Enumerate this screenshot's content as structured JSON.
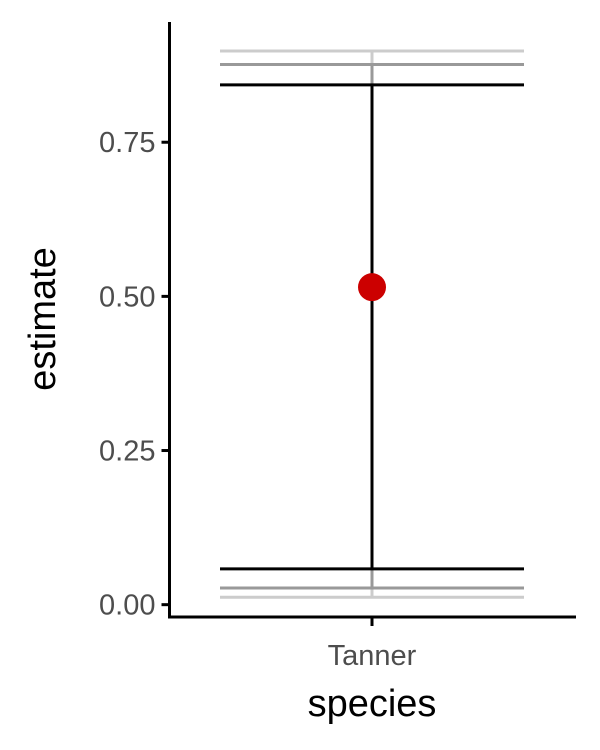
{
  "chart_data": {
    "type": "errorbar",
    "title": "",
    "xlabel": "species",
    "ylabel": "estimate",
    "categories": [
      "Tanner"
    ],
    "y_ticks": [
      0.0,
      0.25,
      0.5,
      0.75
    ],
    "y_tick_labels": [
      "0.00",
      "0.25",
      "0.50",
      "0.75"
    ],
    "ylim": [
      -0.02,
      0.945
    ],
    "grid": false,
    "legend": "none",
    "point": {
      "category": "Tanner",
      "estimate": 0.515,
      "color": "#cc0000"
    },
    "intervals": [
      {
        "category": "Tanner",
        "lower": 0.012,
        "upper": 0.898,
        "color": "#cccccc"
      },
      {
        "category": "Tanner",
        "lower": 0.027,
        "upper": 0.876,
        "color": "#999999"
      },
      {
        "category": "Tanner",
        "lower": 0.058,
        "upper": 0.843,
        "color": "#000000"
      }
    ]
  }
}
